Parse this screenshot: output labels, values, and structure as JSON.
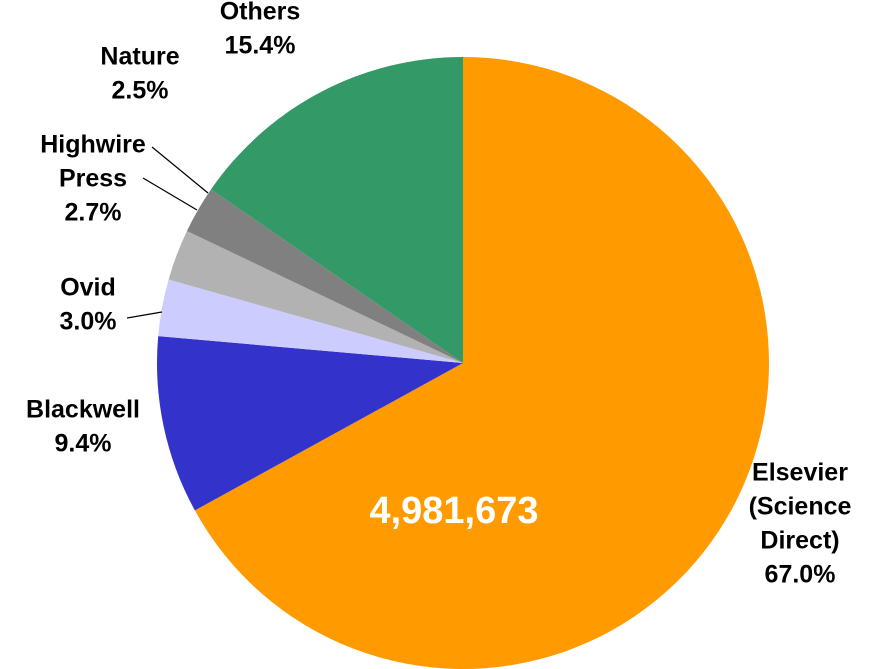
{
  "chart_data": {
    "type": "pie",
    "start_angle_deg": 0,
    "direction": "clockwise",
    "slices": [
      {
        "name": "Elsevier (Science Direct)",
        "label_lines": [
          "Elsevier",
          "(Science",
          "Direct)"
        ],
        "percent_label": "67.0%",
        "value": 67.0,
        "color": "#FF9A00"
      },
      {
        "name": "Blackwell",
        "label_lines": [
          "Blackwell"
        ],
        "percent_label": "9.4%",
        "value": 9.4,
        "color": "#3333CC"
      },
      {
        "name": "Ovid",
        "label_lines": [
          "Ovid"
        ],
        "percent_label": "3.0%",
        "value": 3.0,
        "color": "#CCCCFF"
      },
      {
        "name": "Highwire Press",
        "label_lines": [
          "Highwire",
          "Press"
        ],
        "percent_label": "2.7%",
        "value": 2.7,
        "color": "#B2B2B2"
      },
      {
        "name": "Nature",
        "label_lines": [
          "Nature"
        ],
        "percent_label": "2.5%",
        "value": 2.5,
        "color": "#808080"
      },
      {
        "name": "Others",
        "label_lines": [
          "Others"
        ],
        "percent_label": "15.4%",
        "value": 15.4,
        "color": "#339966"
      }
    ],
    "center_annotation": "4,981,673",
    "legend": "none"
  }
}
